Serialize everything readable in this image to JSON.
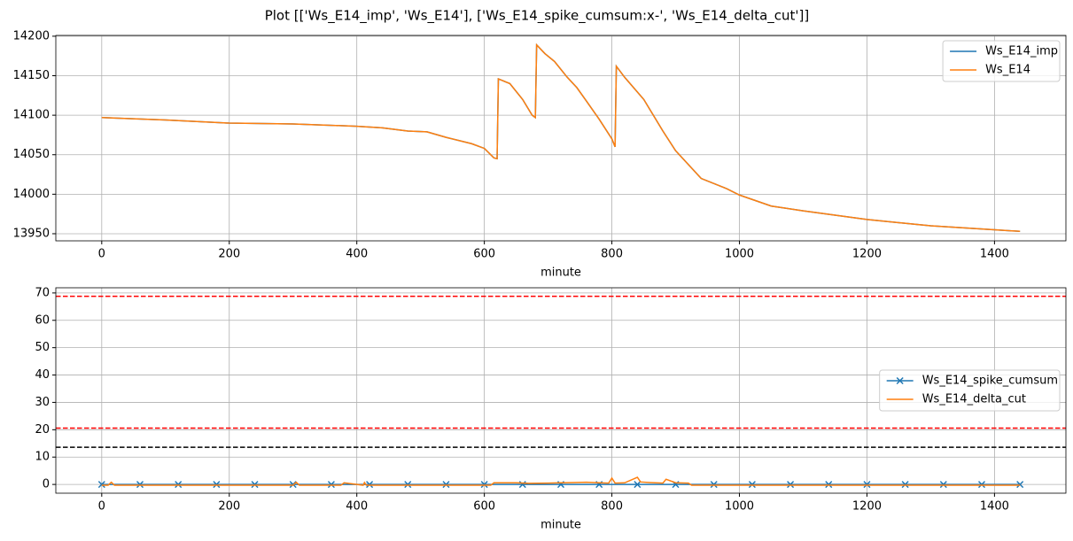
{
  "figure_title": "Plot [['Ws_E14_imp', 'Ws_E14'], ['Ws_E14_spike_cumsum:x-', 'Ws_E14_delta_cut']]",
  "chart_data": [
    {
      "type": "line",
      "xlabel": "minute",
      "x": [
        0,
        100,
        200,
        300,
        400,
        440,
        480,
        510,
        540,
        580,
        600,
        615,
        620,
        622,
        640,
        660,
        675,
        680,
        682,
        695,
        710,
        730,
        745,
        760,
        780,
        800,
        805,
        807,
        820,
        850,
        880,
        900,
        940,
        980,
        1000,
        1050,
        1100,
        1200,
        1300,
        1400,
        1440
      ],
      "series": [
        {
          "name": "Ws_E14_imp",
          "color": "#1f77b4",
          "values": [
            14097,
            14094,
            14090,
            14089,
            14086,
            14084,
            14080,
            14079,
            14072,
            14064,
            14058,
            14046,
            14045,
            14146,
            14140,
            14120,
            14100,
            14097,
            14189,
            14178,
            14168,
            14148,
            14135,
            14118,
            14095,
            14070,
            14060,
            14162,
            14148,
            14120,
            14080,
            14055,
            14020,
            14007,
            13999,
            13985,
            13979,
            13968,
            13960,
            13955,
            13953
          ]
        },
        {
          "name": "Ws_E14",
          "color": "#ff7f0e",
          "values": [
            14097,
            14094,
            14090,
            14089,
            14086,
            14084,
            14080,
            14079,
            14072,
            14064,
            14058,
            14046,
            14045,
            14146,
            14140,
            14120,
            14100,
            14097,
            14189,
            14178,
            14168,
            14148,
            14135,
            14118,
            14095,
            14070,
            14060,
            14162,
            14148,
            14120,
            14080,
            14055,
            14020,
            14007,
            13999,
            13985,
            13979,
            13968,
            13960,
            13955,
            13953
          ]
        }
      ],
      "xlim": [
        -72,
        1512
      ],
      "xticks": [
        0,
        200,
        400,
        600,
        800,
        1000,
        1200,
        1400
      ],
      "ylim": [
        13941,
        14201
      ],
      "yticks": [
        13950,
        14000,
        14050,
        14100,
        14150,
        14200
      ],
      "grid": true,
      "legend": "upper right"
    },
    {
      "type": "line",
      "xlabel": "minute",
      "series": [
        {
          "name": "Ws_E14_spike_cumsum",
          "color": "#1f77b4",
          "marker": "x",
          "x": [
            0,
            60,
            120,
            180,
            240,
            300,
            360,
            420,
            480,
            540,
            600,
            660,
            720,
            780,
            840,
            900,
            960,
            1020,
            1080,
            1140,
            1200,
            1260,
            1320,
            1380,
            1440
          ],
          "values": [
            0,
            0,
            0,
            0,
            0,
            0,
            0,
            0,
            0,
            0,
            0,
            0,
            0,
            0,
            0,
            0,
            0,
            0,
            0,
            0,
            0,
            0,
            0,
            0,
            0
          ]
        },
        {
          "name": "Ws_E14_delta_cut",
          "color": "#ff7f0e",
          "x": [
            0,
            10,
            15,
            20,
            300,
            305,
            310,
            375,
            380,
            410,
            412,
            415,
            500,
            610,
            615,
            650,
            670,
            700,
            720,
            740,
            760,
            780,
            795,
            800,
            805,
            820,
            840,
            845,
            860,
            880,
            885,
            900,
            920,
            925,
            1440
          ],
          "values": [
            -0.3,
            -0.3,
            0.8,
            -0.3,
            -0.3,
            0.8,
            -0.3,
            -0.3,
            0.6,
            -0.3,
            0.7,
            -0.3,
            -0.3,
            -0.3,
            0.6,
            0.6,
            0.4,
            0.5,
            0.6,
            0.7,
            0.8,
            0.6,
            0.5,
            2.3,
            0.5,
            0.6,
            2.6,
            0.9,
            0.7,
            0.5,
            1.9,
            0.6,
            0.5,
            -0.3,
            -0.3
          ]
        }
      ],
      "hlines": [
        {
          "value": 68.8,
          "color": "#ff0000"
        },
        {
          "value": 20.6,
          "color": "#ff0000"
        },
        {
          "value": 13.6,
          "color": "#000000"
        }
      ],
      "xlim": [
        -72,
        1512
      ],
      "xticks": [
        0,
        200,
        400,
        600,
        800,
        1000,
        1200,
        1400
      ],
      "ylim": [
        -3.2,
        71.9
      ],
      "yticks": [
        0,
        10,
        20,
        30,
        40,
        50,
        60,
        70
      ],
      "grid": true,
      "legend": "center right"
    }
  ]
}
